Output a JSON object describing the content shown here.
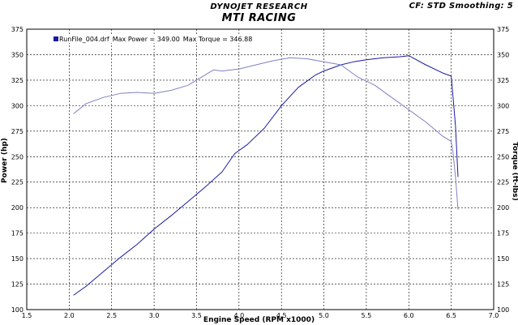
{
  "header": {
    "title": "DYNOJET RESEARCH",
    "subtitle": "MTI RACING",
    "settings": "CF: STD  Smoothing: 5"
  },
  "legend": {
    "run_name": "RunFile_004.drf",
    "max_power_label": "Max Power = 349.00",
    "max_torque_label": "Max Torque = 346.88"
  },
  "chart_data": {
    "type": "line",
    "title": "MTI RACING",
    "xlabel": "Engine Speed (RPM x1000)",
    "ylabel": "Power (hp)",
    "y2label": "Torque (ft-lbs)",
    "xlim": [
      1.5,
      7.0
    ],
    "ylim": [
      100,
      375
    ],
    "y2lim": [
      100,
      375
    ],
    "x_ticks": [
      "1.5",
      "2.0",
      "2.5",
      "3.0",
      "3.5",
      "4.0",
      "4.5",
      "5.0",
      "5.5",
      "6.0",
      "6.5",
      "7.0"
    ],
    "y_ticks": [
      "100",
      "125",
      "150",
      "175",
      "200",
      "225",
      "250",
      "275",
      "300",
      "325",
      "350",
      "375"
    ],
    "grid": true,
    "legend_position": "top-left",
    "series": [
      {
        "color": "#1a1aa0",
        "axis": "left",
        "x": [
          2.05,
          2.2,
          2.4,
          2.6,
          2.8,
          3.0,
          3.2,
          3.4,
          3.6,
          3.8,
          3.95,
          4.1,
          4.3,
          4.5,
          4.7,
          4.9,
          5.0,
          5.2,
          5.35,
          5.5,
          5.7,
          5.9,
          6.0,
          6.2,
          6.4,
          6.5,
          6.52,
          6.55,
          6.58
        ],
        "y": [
          114,
          123,
          137,
          151,
          164,
          179,
          192,
          206,
          220,
          235,
          253,
          262,
          278,
          300,
          318,
          330,
          334,
          340,
          343,
          345,
          347,
          348,
          349,
          340,
          332,
          329,
          310,
          280,
          230
        ]
      },
      {
        "color": "#8080c0",
        "axis": "right",
        "x": [
          2.05,
          2.2,
          2.4,
          2.6,
          2.8,
          3.0,
          3.2,
          3.4,
          3.6,
          3.7,
          3.8,
          4.0,
          4.2,
          4.4,
          4.6,
          4.8,
          5.0,
          5.2,
          5.4,
          5.6,
          5.8,
          6.0,
          6.2,
          6.4,
          6.5,
          6.52,
          6.55,
          6.58
        ],
        "y": [
          292,
          302,
          308,
          312,
          313,
          312,
          315,
          320,
          330,
          335,
          334,
          336,
          340,
          344,
          347,
          346,
          343,
          340,
          328,
          320,
          308,
          296,
          284,
          270,
          265,
          255,
          230,
          198
        ]
      }
    ]
  }
}
